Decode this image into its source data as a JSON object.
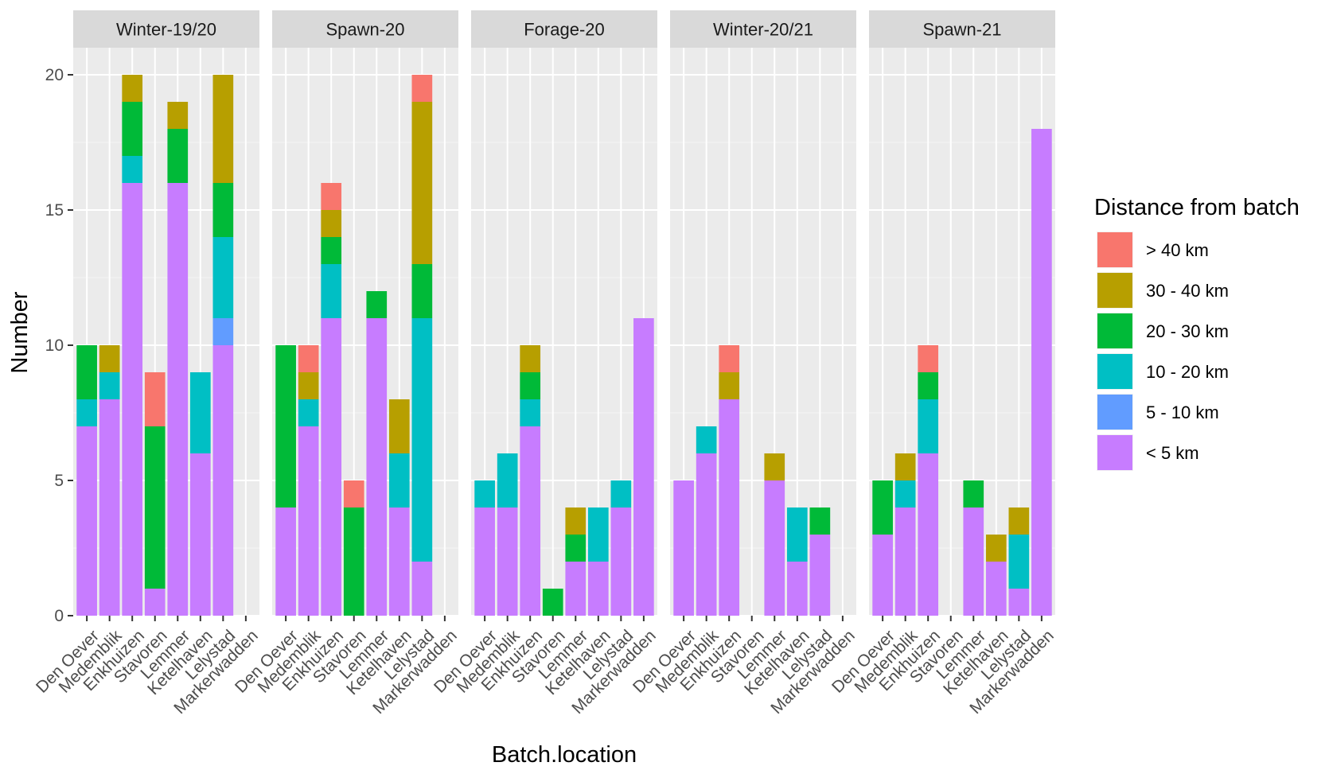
{
  "chart_data": {
    "type": "bar",
    "stacked": true,
    "xlabel": "Batch.location",
    "ylabel": "Number",
    "ylim": [
      0,
      21
    ],
    "yticks": [
      0,
      5,
      10,
      15,
      20
    ],
    "grid": true,
    "legend": {
      "title": "Distance from batch",
      "placement": "right",
      "entries": [
        {
          "label": "> 40 km",
          "color": "#F8766D"
        },
        {
          "label": "30 - 40 km",
          "color": "#B79F00"
        },
        {
          "label": "20 - 30 km",
          "color": "#00BA38"
        },
        {
          "label": "10 - 20 km",
          "color": "#00BFC4"
        },
        {
          "label": "5 - 10 km",
          "color": "#619CFF"
        },
        {
          "label": "< 5 km",
          "color": "#C77CFF"
        }
      ]
    },
    "stack_order_bottom_to_top": [
      "< 5 km",
      "5 - 10 km",
      "10 - 20 km",
      "20 - 30 km",
      "30 - 40 km",
      "> 40 km"
    ],
    "categories": [
      "Den Oever",
      "Medemblik",
      "Enkhuizen",
      "Stavoren",
      "Lemmer",
      "Ketelhaven",
      "Lelystad",
      "Markerwadden"
    ],
    "panels": [
      {
        "title": "Winter-19/20",
        "series": [
          {
            "name": "< 5 km",
            "values": [
              7,
              8,
              16,
              1,
              16,
              6,
              10,
              0
            ]
          },
          {
            "name": "5 - 10 km",
            "values": [
              0,
              0,
              0,
              0,
              0,
              0,
              1,
              0
            ]
          },
          {
            "name": "10 - 20 km",
            "values": [
              1,
              1,
              1,
              0,
              0,
              3,
              3,
              0
            ]
          },
          {
            "name": "20 - 30 km",
            "values": [
              2,
              0,
              2,
              6,
              2,
              0,
              2,
              0
            ]
          },
          {
            "name": "30 - 40 km",
            "values": [
              0,
              1,
              1,
              0,
              1,
              0,
              4,
              0
            ]
          },
          {
            "name": "> 40 km",
            "values": [
              0,
              0,
              0,
              2,
              0,
              0,
              0,
              0
            ]
          }
        ]
      },
      {
        "title": "Spawn-20",
        "series": [
          {
            "name": "< 5 km",
            "values": [
              4,
              7,
              11,
              0,
              11,
              4,
              2,
              0
            ]
          },
          {
            "name": "5 - 10 km",
            "values": [
              0,
              0,
              0,
              0,
              0,
              0,
              0,
              0
            ]
          },
          {
            "name": "10 - 20 km",
            "values": [
              0,
              1,
              2,
              0,
              0,
              2,
              9,
              0
            ]
          },
          {
            "name": "20 - 30 km",
            "values": [
              6,
              0,
              1,
              4,
              1,
              0,
              2,
              0
            ]
          },
          {
            "name": "30 - 40 km",
            "values": [
              0,
              1,
              1,
              0,
              0,
              2,
              6,
              0
            ]
          },
          {
            "name": "> 40 km",
            "values": [
              0,
              1,
              1,
              1,
              0,
              0,
              1,
              0
            ]
          }
        ]
      },
      {
        "title": "Forage-20",
        "series": [
          {
            "name": "< 5 km",
            "values": [
              4,
              4,
              7,
              0,
              2,
              2,
              4,
              11
            ]
          },
          {
            "name": "5 - 10 km",
            "values": [
              0,
              0,
              0,
              0,
              0,
              0,
              0,
              0
            ]
          },
          {
            "name": "10 - 20 km",
            "values": [
              1,
              2,
              1,
              0,
              0,
              2,
              1,
              0
            ]
          },
          {
            "name": "20 - 30 km",
            "values": [
              0,
              0,
              1,
              1,
              1,
              0,
              0,
              0
            ]
          },
          {
            "name": "30 - 40 km",
            "values": [
              0,
              0,
              1,
              0,
              1,
              0,
              0,
              0
            ]
          },
          {
            "name": "> 40 km",
            "values": [
              0,
              0,
              0,
              0,
              0,
              0,
              0,
              0
            ]
          }
        ]
      },
      {
        "title": "Winter-20/21",
        "series": [
          {
            "name": "< 5 km",
            "values": [
              5,
              6,
              8,
              0,
              5,
              2,
              3,
              0
            ]
          },
          {
            "name": "5 - 10 km",
            "values": [
              0,
              0,
              0,
              0,
              0,
              0,
              0,
              0
            ]
          },
          {
            "name": "10 - 20 km",
            "values": [
              0,
              1,
              0,
              0,
              0,
              2,
              0,
              0
            ]
          },
          {
            "name": "20 - 30 km",
            "values": [
              0,
              0,
              0,
              0,
              0,
              0,
              1,
              0
            ]
          },
          {
            "name": "30 - 40 km",
            "values": [
              0,
              0,
              1,
              0,
              1,
              0,
              0,
              0
            ]
          },
          {
            "name": "> 40 km",
            "values": [
              0,
              0,
              1,
              0,
              0,
              0,
              0,
              0
            ]
          }
        ]
      },
      {
        "title": "Spawn-21",
        "series": [
          {
            "name": "< 5 km",
            "values": [
              3,
              4,
              6,
              0,
              4,
              2,
              1,
              18
            ]
          },
          {
            "name": "5 - 10 km",
            "values": [
              0,
              0,
              0,
              0,
              0,
              0,
              0,
              0
            ]
          },
          {
            "name": "10 - 20 km",
            "values": [
              0,
              1,
              2,
              0,
              0,
              0,
              2,
              0
            ]
          },
          {
            "name": "20 - 30 km",
            "values": [
              2,
              0,
              1,
              0,
              1,
              0,
              0,
              0
            ]
          },
          {
            "name": "30 - 40 km",
            "values": [
              0,
              1,
              0,
              0,
              0,
              1,
              1,
              0
            ]
          },
          {
            "name": "> 40 km",
            "values": [
              0,
              0,
              1,
              0,
              0,
              0,
              0,
              0
            ]
          }
        ]
      }
    ]
  }
}
